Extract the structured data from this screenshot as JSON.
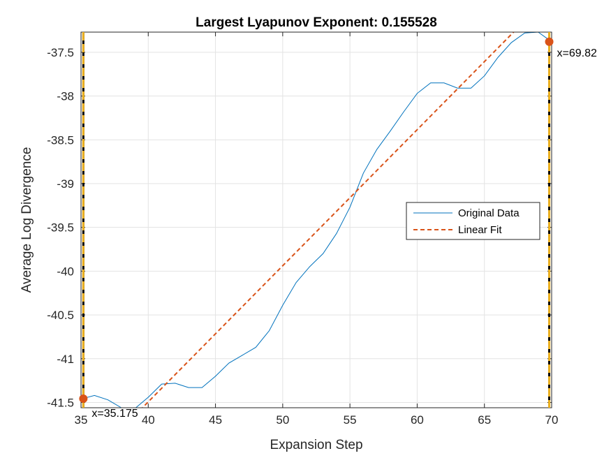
{
  "chart_data": {
    "type": "line",
    "title": "Largest Lyapunov Exponent: 0.155528",
    "xlabel": "Expansion Step",
    "ylabel": "Average Log Divergence",
    "xlim": [
      35,
      70
    ],
    "ylim": [
      -41.56,
      -37.27
    ],
    "xticks": [
      35,
      40,
      45,
      50,
      55,
      60,
      65,
      70
    ],
    "yticks": [
      -41.5,
      -41,
      -40.5,
      -40,
      -39.5,
      -39,
      -38.5,
      -38,
      -37.5
    ],
    "grid": true,
    "legend_position": "center-right",
    "series": [
      {
        "name": "Original Data",
        "color": "#0072BD",
        "style": "solid",
        "x": [
          35,
          36,
          37,
          38,
          39,
          40,
          41,
          42,
          43,
          44,
          45,
          46,
          47,
          48,
          49,
          50,
          51,
          52,
          53,
          54,
          55,
          56,
          57,
          58,
          59,
          60,
          61,
          62,
          63,
          64,
          65,
          66,
          67,
          68,
          69,
          70
        ],
        "y": [
          -41.46,
          -41.42,
          -41.47,
          -41.56,
          -41.57,
          -41.44,
          -41.29,
          -41.28,
          -41.33,
          -41.33,
          -41.2,
          -41.05,
          -40.96,
          -40.87,
          -40.68,
          -40.39,
          -40.13,
          -39.95,
          -39.8,
          -39.57,
          -39.27,
          -38.88,
          -38.61,
          -38.4,
          -38.18,
          -37.97,
          -37.85,
          -37.85,
          -37.91,
          -37.91,
          -37.77,
          -37.56,
          -37.39,
          -37.28,
          -37.27,
          -37.38
        ]
      },
      {
        "name": "Linear Fit",
        "color": "#D95319",
        "style": "dashed",
        "x": [
          35,
          70
        ],
        "y": [
          -42.27,
          -36.83
        ]
      }
    ],
    "vlines": {
      "color": "#EDB120",
      "x": [
        35.175,
        69.82
      ]
    },
    "markers": [
      {
        "x": 35.175,
        "y": -41.456,
        "label": "x=35.175",
        "color": "#D95319"
      },
      {
        "x": 69.82,
        "y": -37.38,
        "label": "x=69.82",
        "color": "#D95319"
      }
    ]
  }
}
